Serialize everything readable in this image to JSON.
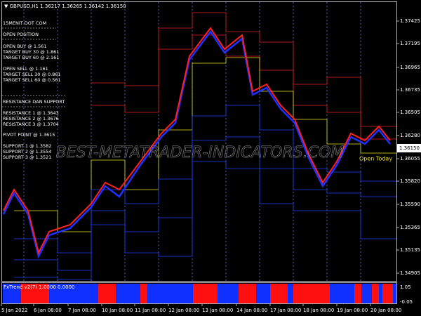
{
  "header": {
    "symbol_info": "GBPUSD,H1  1.36217 1.36265 1.36142 1.36150"
  },
  "info_panel": [
    "15MENIT DOT COM",
    "OPEN POSITION",
    "OPEN BUY @ 1.561",
    "TARGET BUY 30 @ 1.861",
    "TARGET BUY 60 @ 2.161",
    "OPEN SELL @ 1.161",
    "TARGET SELL 30 @ 0.861",
    "TARGET SELL 60 @ 0.561",
    "RESISTANCE DAN SUPPORT",
    "RESISTANCE 1 @ 1.3643",
    "RESISTANCE 2 @ 1.3676",
    "RESISTANCE 3 @ 1.3704",
    "PIVOT POINT @ 1.3615",
    "SUPPORT 1 @ 1.3582",
    "SUPPORT 2 @ 1.3554",
    "SUPPORT 3 @ 1.3521"
  ],
  "price_axis": [
    "1.37425",
    "1.37195",
    "1.36965",
    "1.36735",
    "1.36505",
    "1.36280",
    "1.36055",
    "1.35820",
    "1.35590",
    "1.35365",
    "1.35135",
    "1.34905"
  ],
  "current_price": "1.36150",
  "open_today": "Open Today",
  "watermark": "BEST-METATRADER-INDICATORS.COM",
  "indicator": {
    "title": "FxTrend v2(7) 1.0000 0.0000",
    "axis": [
      "1.05",
      "-0.05"
    ]
  },
  "date_axis": [
    "5 Jan 2022",
    "6 Jan 08:00",
    "7 Jan 08:00",
    "10 Jan 08:00",
    "11 Jan 08:00",
    "12 Jan 08:00",
    "13 Jan 08:00",
    "14 Jan 08:00",
    "17 Jan 08:00",
    "18 Jan 08:00",
    "19 Jan 08:00",
    "20 Jan 08:00"
  ]
}
